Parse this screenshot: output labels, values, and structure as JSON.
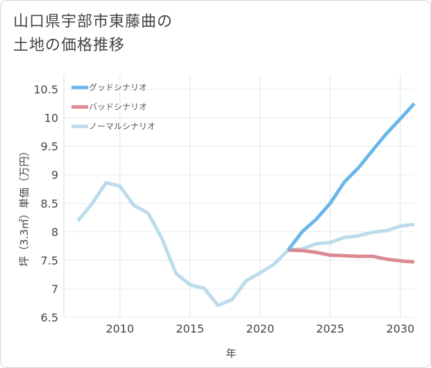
{
  "title": {
    "line1": "山口県宇部市東藤曲の",
    "line2": "土地の価格推移"
  },
  "chart_data": {
    "type": "line",
    "xlabel": "年",
    "ylabel": "坪（3.3㎡）単価（万円）",
    "xlim": [
      2006,
      2031
    ],
    "ylim": [
      6.5,
      10.75
    ],
    "xticks": [
      2010,
      2015,
      2020,
      2025,
      2030
    ],
    "yticks": [
      6.5,
      7,
      7.5,
      8,
      8.5,
      9,
      9.5,
      10,
      10.5
    ],
    "grid": true,
    "legend_position": "top-left",
    "series": [
      {
        "name": "グッドシナリオ",
        "color": "#6cb7ea",
        "x": [
          2022,
          2023,
          2024,
          2025,
          2026,
          2027,
          2028,
          2029,
          2030,
          2031
        ],
        "values": [
          7.68,
          8.0,
          8.22,
          8.5,
          8.87,
          9.12,
          9.42,
          9.72,
          9.98,
          10.25
        ]
      },
      {
        "name": "バッドシナリオ",
        "color": "#db8a91",
        "x": [
          2022,
          2023,
          2024,
          2025,
          2026,
          2027,
          2028,
          2029,
          2030,
          2031
        ],
        "values": [
          7.68,
          7.67,
          7.64,
          7.59,
          7.58,
          7.57,
          7.57,
          7.52,
          7.49,
          7.47
        ]
      },
      {
        "name": "ノーマルシナリオ",
        "color": "#bcdcec",
        "x": [
          2007,
          2008,
          2009,
          2010,
          2011,
          2012,
          2013,
          2014,
          2015,
          2016,
          2017,
          2018,
          2019,
          2020,
          2021,
          2022,
          2023,
          2024,
          2025,
          2026,
          2027,
          2028,
          2029,
          2030,
          2031
        ],
        "values": [
          8.19,
          8.49,
          8.86,
          8.8,
          8.46,
          8.33,
          7.88,
          7.27,
          7.07,
          7.01,
          6.71,
          6.81,
          7.14,
          7.28,
          7.43,
          7.68,
          7.7,
          7.79,
          7.81,
          7.9,
          7.93,
          7.99,
          8.02,
          8.1,
          8.13
        ]
      }
    ]
  }
}
